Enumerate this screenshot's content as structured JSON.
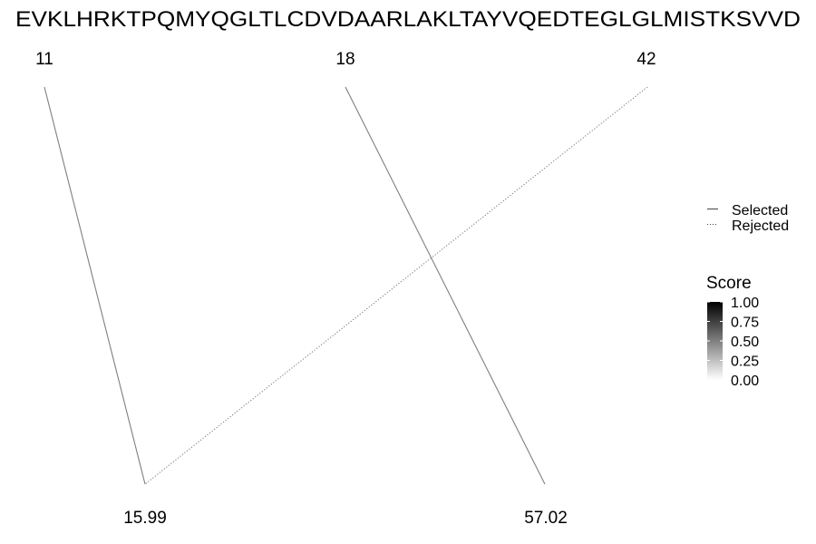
{
  "chart_data": {
    "type": "line",
    "sequence": "EVKLHRKTPQMYQGLTLCDVDAARLAKLTAYVQEDTEGLGLMISTKSVVD",
    "title": "",
    "xlabel": "",
    "ylabel": "",
    "grid": false,
    "legend_position": "right",
    "top_labels": [
      "11",
      "18",
      "42"
    ],
    "bottom_labels": [
      "15.99",
      "57.02"
    ],
    "segments": [
      {
        "from": "11",
        "to": "15.99",
        "status": "Selected"
      },
      {
        "from": "18",
        "to": "57.02",
        "status": "Selected"
      },
      {
        "from": "42",
        "to": "15.99",
        "status": "Rejected"
      }
    ],
    "linetype_legend": [
      {
        "label": "Selected",
        "dash": "solid"
      },
      {
        "label": "Rejected",
        "dash": "dotted"
      }
    ],
    "color_scale": {
      "title": "Score",
      "ticks": [
        "1.00",
        "0.75",
        "0.50",
        "0.25",
        "0.00"
      ],
      "low_color": "#ffffff",
      "high_color": "#000000"
    },
    "line_color": "#7f7f7f"
  }
}
